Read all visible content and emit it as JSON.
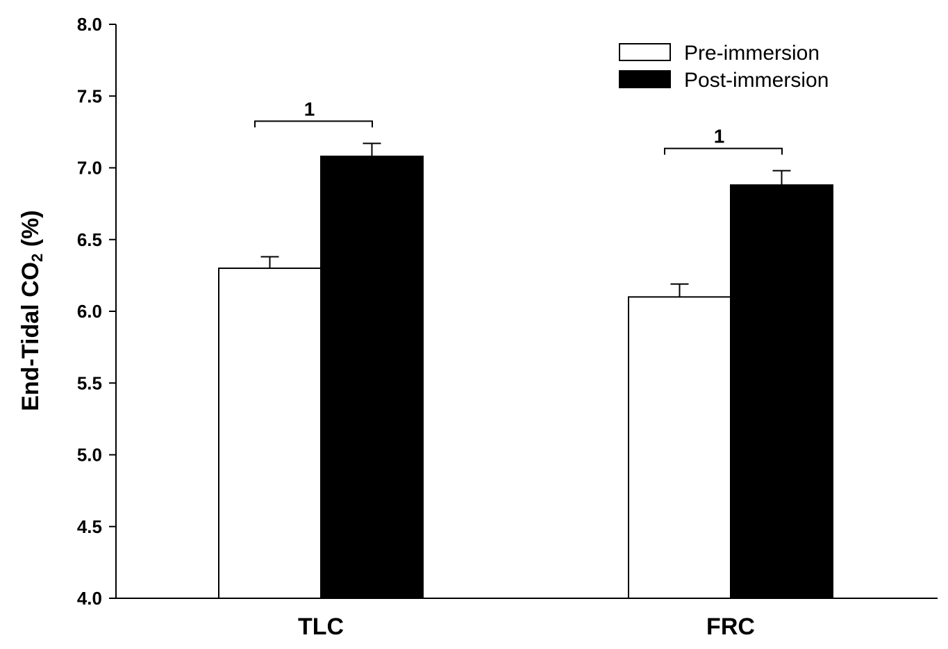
{
  "chart_data": {
    "type": "bar",
    "categories": [
      "TLC",
      "FRC"
    ],
    "series": [
      {
        "name": "Pre-immersion",
        "values": [
          6.3,
          6.1
        ],
        "errors": [
          0.08,
          0.09
        ],
        "color": "#ffffff"
      },
      {
        "name": "Post-immersion",
        "values": [
          7.08,
          6.88
        ],
        "errors": [
          0.09,
          0.1
        ],
        "color": "#000000"
      }
    ],
    "ylabel_main": "End-Tidal CO",
    "ylabel_sub": "2",
    "ylabel_unit": " (%)",
    "ylim": [
      4.0,
      8.0
    ],
    "yticks": [
      "4.0",
      "4.5",
      "5.0",
      "5.5",
      "6.0",
      "6.5",
      "7.0",
      "7.5",
      "8.0"
    ],
    "legend_position": "top-right",
    "grid": false,
    "annotations": [
      {
        "category": "TLC",
        "label": "1"
      },
      {
        "category": "FRC",
        "label": "1"
      }
    ]
  }
}
